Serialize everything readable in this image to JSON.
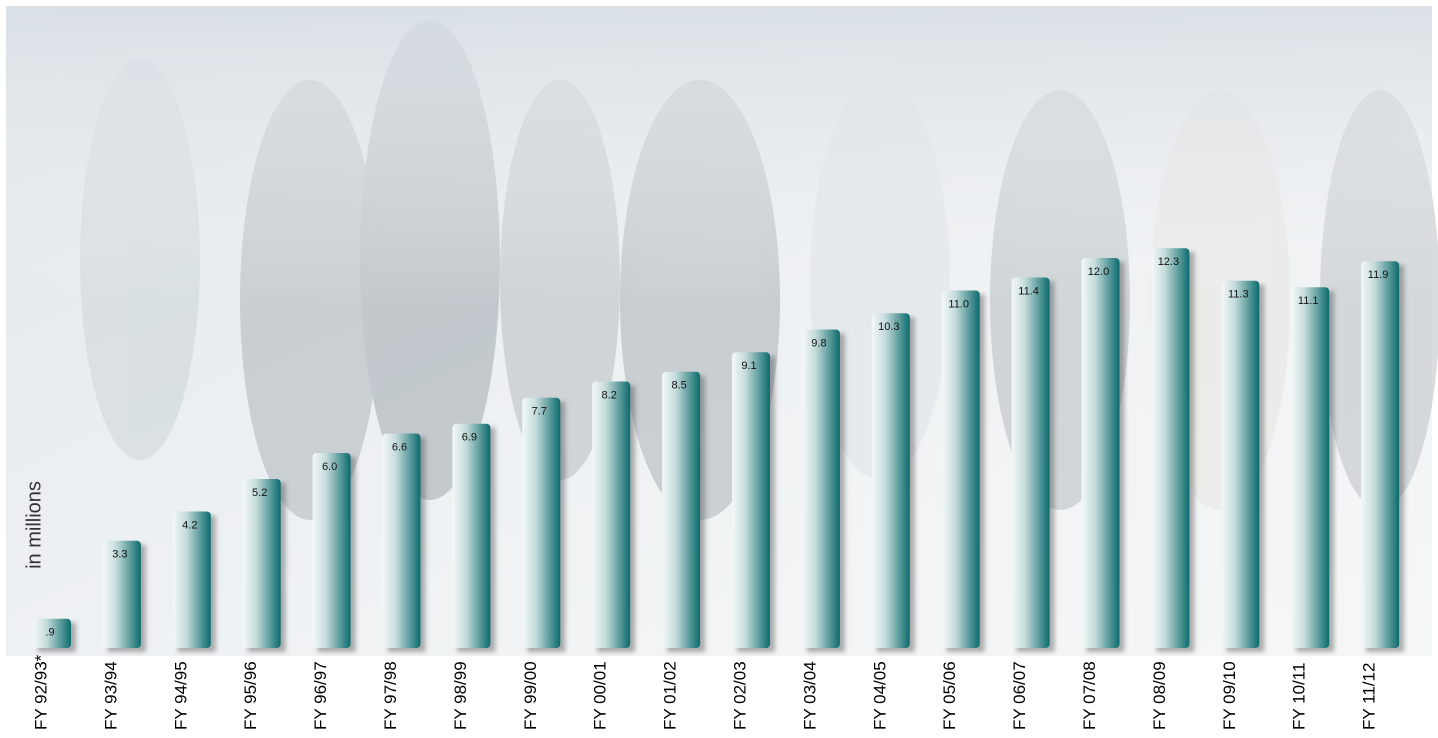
{
  "chart_data": {
    "type": "bar",
    "y_label": "in millions",
    "categories": [
      "FY 92/93*",
      "FY 93/94",
      "FY 94/95",
      "FY 95/96",
      "FY 96/97",
      "FY 97/98",
      "FY 98/99",
      "FY 99/00",
      "FY 00/01",
      "FY 01/02",
      "FY 02/03",
      "FY 03/04",
      "FY 04/05",
      "FY 05/06",
      "FY 06/07",
      "FY 07/08",
      "FY 08/09",
      "FY 09/10",
      "FY 10/11",
      "FY 11/12"
    ],
    "values": [
      0.9,
      3.3,
      4.2,
      5.2,
      6.0,
      6.6,
      6.9,
      7.7,
      8.2,
      8.5,
      9.1,
      9.8,
      10.3,
      11.0,
      11.4,
      12.0,
      12.3,
      11.3,
      11.1,
      11.9
    ],
    "value_labels": [
      ".9",
      "3.3",
      "4.2",
      "5.2",
      "6.0",
      "6.6",
      "6.9",
      "7.7",
      "8.2",
      "8.5",
      "9.1",
      "9.8",
      "10.3",
      "11.0",
      "11.4",
      "12.0",
      "12.3",
      "11.3",
      "11.1",
      "11.9"
    ],
    "color": "#0b6b6d"
  }
}
